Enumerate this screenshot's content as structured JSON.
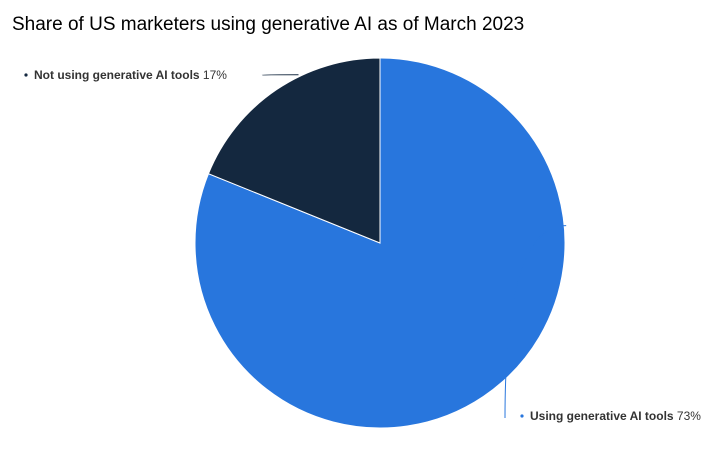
{
  "chart_data": {
    "type": "pie",
    "title": "Share of US marketers using generative AI as of March 2023",
    "slices": [
      {
        "label": "Using generative AI tools",
        "value": 73,
        "value_label": "73%",
        "color": "#2876dd"
      },
      {
        "label": "Not using generative AI tools",
        "value": 17,
        "value_label": "17%",
        "color": "#14283f"
      }
    ]
  }
}
